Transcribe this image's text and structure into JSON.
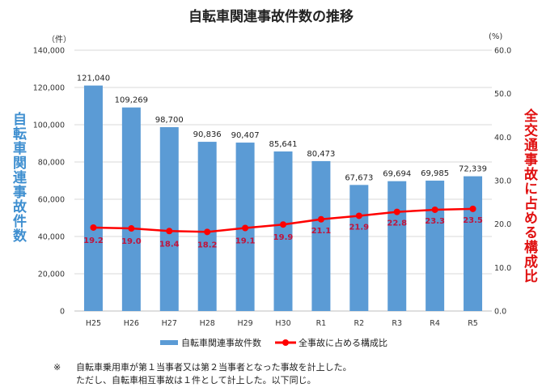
{
  "chart_data": {
    "type": "bar+line",
    "title": "自転車関連事故件数の推移",
    "categories": [
      "H25",
      "H26",
      "H27",
      "H28",
      "H29",
      "H30",
      "R1",
      "R2",
      "R3",
      "R4",
      "R5"
    ],
    "series": [
      {
        "name": "自転車関連事故件数",
        "type": "bar",
        "axis": "left",
        "color": "#5b9bd5",
        "values": [
          121040,
          109269,
          98700,
          90836,
          90407,
          85641,
          80473,
          67673,
          69694,
          69985,
          72339
        ],
        "labels": [
          "121,040",
          "109,269",
          "98,700",
          "90,836",
          "90,407",
          "85,641",
          "80,473",
          "67,673",
          "69,694",
          "69,985",
          "72,339"
        ]
      },
      {
        "name": "全事故に占める構成比",
        "type": "line",
        "axis": "right",
        "color": "#ff0000",
        "values": [
          19.2,
          19.0,
          18.4,
          18.2,
          19.1,
          19.9,
          21.1,
          21.9,
          22.8,
          23.3,
          23.5
        ],
        "labels": [
          "19.2",
          "19.0",
          "18.4",
          "18.2",
          "19.1",
          "19.9",
          "21.1",
          "21.9",
          "22.8",
          "23.3",
          "23.5"
        ]
      }
    ],
    "ylabel": "自転車関連事故件数",
    "ylabel_right": "全交通事故に占める構成比",
    "yunit": "（件）",
    "yunit_right": "(%)",
    "ylim": [
      0,
      140000
    ],
    "ylim_right": [
      0,
      60
    ],
    "yticks": [
      "0",
      "20,000",
      "40,000",
      "60,000",
      "80,000",
      "100,000",
      "120,000",
      "140,000"
    ],
    "yticks_right": [
      "0.0",
      "10.0",
      "20.0",
      "30.0",
      "40.0",
      "50.0",
      "60.0"
    ],
    "grid": true,
    "legend": "bottom"
  },
  "note": {
    "mark": "※",
    "lines": [
      "自転車乗用車が第１当事者又は第２当事者となった事故を計上した。",
      "ただし、自転車相互事故は１件として計上した。以下同じ。"
    ]
  }
}
